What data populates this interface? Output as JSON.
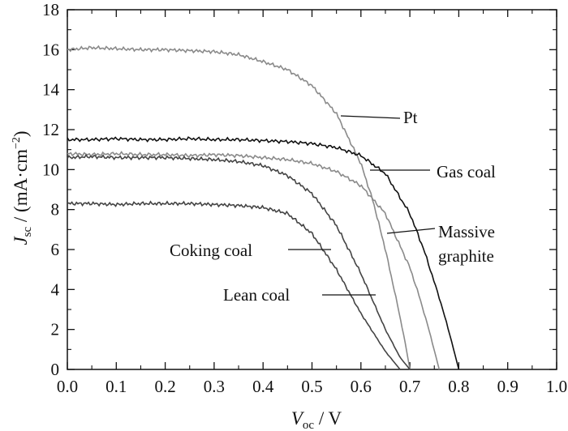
{
  "chart_data": {
    "type": "line",
    "xlabel_main": "V",
    "xlabel_sub": "oc",
    "xlabel_unit": " / V",
    "ylabel_main": "J",
    "ylabel_sub": "sc",
    "ylabel_unit_a": " / (mA·cm",
    "ylabel_sup": "−2",
    "ylabel_unit_b": ")",
    "xlim": [
      0.0,
      1.0
    ],
    "ylim": [
      0,
      18
    ],
    "xticks": [
      "0.0",
      "0.1",
      "0.2",
      "0.3",
      "0.4",
      "0.5",
      "0.6",
      "0.7",
      "0.8",
      "0.9",
      "1.0"
    ],
    "yticks": [
      "0",
      "2",
      "4",
      "6",
      "8",
      "10",
      "12",
      "14",
      "16",
      "18"
    ],
    "grid": false,
    "series": [
      {
        "name": "Pt",
        "color": "#8a8a8a",
        "x": [
          0.0,
          0.05,
          0.1,
          0.15,
          0.2,
          0.25,
          0.3,
          0.35,
          0.4,
          0.45,
          0.5,
          0.55,
          0.6,
          0.625,
          0.65,
          0.675,
          0.69,
          0.7
        ],
        "y": [
          16.0,
          16.1,
          16.05,
          16.0,
          16.0,
          15.95,
          15.9,
          15.75,
          15.4,
          15.0,
          14.2,
          12.8,
          10.3,
          8.4,
          6.0,
          3.2,
          1.4,
          0.0
        ]
      },
      {
        "name": "Gas coal",
        "color": "#111111",
        "x": [
          0.0,
          0.05,
          0.1,
          0.15,
          0.2,
          0.25,
          0.3,
          0.35,
          0.4,
          0.45,
          0.5,
          0.55,
          0.6,
          0.65,
          0.7,
          0.73,
          0.76,
          0.78,
          0.8
        ],
        "y": [
          11.5,
          11.5,
          11.55,
          11.5,
          11.5,
          11.55,
          11.5,
          11.5,
          11.45,
          11.4,
          11.3,
          11.1,
          10.7,
          9.8,
          7.8,
          5.9,
          3.6,
          1.9,
          0.0
        ]
      },
      {
        "name": "Massive graphite",
        "color": "#8a8a8a",
        "x": [
          0.0,
          0.05,
          0.1,
          0.15,
          0.2,
          0.25,
          0.3,
          0.35,
          0.4,
          0.45,
          0.5,
          0.55,
          0.6,
          0.65,
          0.7,
          0.72,
          0.74,
          0.76
        ],
        "y": [
          10.8,
          10.75,
          10.8,
          10.75,
          10.75,
          10.7,
          10.75,
          10.7,
          10.6,
          10.5,
          10.3,
          9.9,
          9.2,
          7.8,
          5.1,
          3.6,
          1.9,
          0.0
        ]
      },
      {
        "name": "Coking coal",
        "color": "#444444",
        "x": [
          0.0,
          0.05,
          0.1,
          0.15,
          0.2,
          0.25,
          0.3,
          0.35,
          0.4,
          0.45,
          0.5,
          0.55,
          0.6,
          0.65,
          0.68,
          0.7
        ],
        "y": [
          10.6,
          10.65,
          10.6,
          10.6,
          10.6,
          10.55,
          10.5,
          10.4,
          10.2,
          9.7,
          8.8,
          7.2,
          4.8,
          2.0,
          0.6,
          0.0
        ]
      },
      {
        "name": "Lean coal",
        "color": "#444444",
        "x": [
          0.0,
          0.05,
          0.1,
          0.15,
          0.2,
          0.25,
          0.3,
          0.35,
          0.4,
          0.45,
          0.5,
          0.55,
          0.6,
          0.65,
          0.68
        ],
        "y": [
          8.3,
          8.3,
          8.25,
          8.3,
          8.3,
          8.3,
          8.25,
          8.2,
          8.1,
          7.8,
          6.8,
          5.0,
          2.8,
          0.9,
          0.0
        ]
      }
    ],
    "labels": [
      {
        "text": "Pt"
      },
      {
        "text": "Gas coal"
      },
      {
        "text": "Massive"
      },
      {
        "text": "graphite"
      },
      {
        "text": "Coking coal"
      },
      {
        "text": "Lean coal"
      }
    ]
  }
}
